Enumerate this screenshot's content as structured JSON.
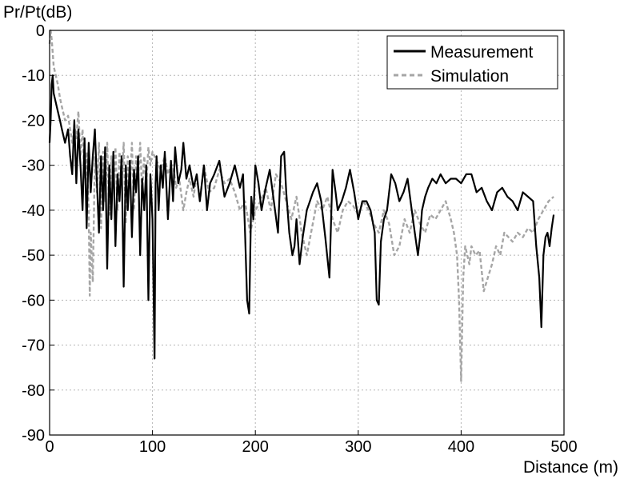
{
  "chart_data": {
    "type": "line",
    "title": "",
    "xlabel": "Distance (m)",
    "ylabel": "Pr/Pt(dB)",
    "xlim": [
      0,
      500
    ],
    "ylim": [
      -90,
      0
    ],
    "x_ticks": [
      0,
      100,
      200,
      300,
      400,
      500
    ],
    "y_ticks": [
      0,
      -10,
      -20,
      -30,
      -40,
      -50,
      -60,
      -70,
      -80,
      -90
    ],
    "x_tick_labels": [
      "0",
      "100",
      "200",
      "300",
      "400",
      "500"
    ],
    "y_tick_labels": [
      "0",
      "-10",
      "-20",
      "-30",
      "-40",
      "-50",
      "-60",
      "-70",
      "-80",
      "-90"
    ],
    "grid": true,
    "legend_position": "top-right",
    "series": [
      {
        "name": "Measurement",
        "color": "#000000",
        "style": "solid",
        "x": [
          0,
          1,
          2,
          3,
          4,
          6,
          8,
          10,
          12,
          15,
          18,
          20,
          22,
          24,
          26,
          28,
          30,
          32,
          34,
          36,
          38,
          40,
          42,
          44,
          46,
          48,
          50,
          52,
          54,
          56,
          58,
          60,
          62,
          64,
          66,
          68,
          70,
          72,
          74,
          76,
          78,
          80,
          82,
          84,
          86,
          88,
          90,
          92,
          94,
          96,
          98,
          100,
          102,
          103,
          104,
          106,
          108,
          110,
          112,
          115,
          118,
          120,
          122,
          125,
          128,
          130,
          133,
          136,
          140,
          143,
          146,
          150,
          153,
          156,
          160,
          165,
          170,
          175,
          180,
          185,
          188,
          190,
          192,
          194,
          196,
          198,
          200,
          203,
          206,
          210,
          214,
          218,
          222,
          225,
          228,
          230,
          233,
          236,
          238,
          240,
          243,
          246,
          250,
          253,
          256,
          260,
          264,
          268,
          272,
          275,
          278,
          280,
          284,
          288,
          292,
          296,
          300,
          304,
          308,
          312,
          316,
          318,
          320,
          322,
          325,
          328,
          332,
          336,
          340,
          344,
          348,
          352,
          355,
          358,
          360,
          362,
          365,
          368,
          372,
          376,
          380,
          385,
          390,
          395,
          400,
          405,
          410,
          415,
          420,
          425,
          430,
          435,
          440,
          445,
          450,
          455,
          460,
          465,
          470,
          473,
          476,
          478,
          480,
          482,
          484,
          486,
          488,
          490
        ],
        "y": [
          -25,
          -20,
          -12,
          -10,
          -14,
          -16,
          -18,
          -20,
          -22,
          -25,
          -22,
          -28,
          -32,
          -20,
          -34,
          -22,
          -30,
          -40,
          -24,
          -44,
          -25,
          -36,
          -28,
          -22,
          -34,
          -45,
          -28,
          -40,
          -26,
          -53,
          -30,
          -42,
          -27,
          -48,
          -32,
          -38,
          -28,
          -57,
          -30,
          -40,
          -29,
          -46,
          -31,
          -36,
          -28,
          -50,
          -33,
          -40,
          -30,
          -60,
          -32,
          -42,
          -73,
          -34,
          -28,
          -40,
          -30,
          -35,
          -27,
          -42,
          -29,
          -38,
          -26,
          -34,
          -31,
          -25,
          -33,
          -30,
          -35,
          -32,
          -38,
          -30,
          -40,
          -34,
          -32,
          -29,
          -37,
          -34,
          -30,
          -35,
          -32,
          -45,
          -60,
          -63,
          -37,
          -42,
          -30,
          -34,
          -40,
          -35,
          -31,
          -38,
          -45,
          -28,
          -27,
          -36,
          -45,
          -50,
          -48,
          -42,
          -52,
          -46,
          -40,
          -38,
          -36,
          -34,
          -38,
          -46,
          -55,
          -31,
          -36,
          -40,
          -38,
          -35,
          -31,
          -36,
          -42,
          -38,
          -38,
          -40,
          -45,
          -60,
          -61,
          -47,
          -42,
          -40,
          -32,
          -34,
          -38,
          -36,
          -33,
          -40,
          -45,
          -50,
          -46,
          -40,
          -37,
          -35,
          -33,
          -34,
          -32,
          -34,
          -33,
          -33,
          -34,
          -32,
          -32,
          -36,
          -35,
          -38,
          -40,
          -36,
          -35,
          -37,
          -38,
          -40,
          -36,
          -37,
          -38,
          -48,
          -55,
          -66,
          -50,
          -46,
          -45,
          -48,
          -44,
          -41
        ]
      },
      {
        "name": "Simulation",
        "color": "#a6a6a6",
        "style": "dashed",
        "x": [
          0,
          1,
          2,
          3,
          4,
          6,
          8,
          10,
          12,
          15,
          18,
          20,
          22,
          24,
          26,
          28,
          30,
          32,
          34,
          36,
          38,
          39,
          40,
          42,
          44,
          46,
          48,
          50,
          52,
          54,
          56,
          58,
          60,
          62,
          64,
          66,
          68,
          70,
          72,
          74,
          76,
          78,
          80,
          82,
          84,
          86,
          88,
          90,
          92,
          94,
          96,
          98,
          100,
          104,
          108,
          112,
          115,
          118,
          120,
          123,
          126,
          130,
          133,
          136,
          140,
          143,
          146,
          150,
          155,
          160,
          165,
          170,
          175,
          180,
          185,
          190,
          195,
          200,
          205,
          210,
          215,
          220,
          225,
          230,
          235,
          240,
          245,
          250,
          255,
          260,
          265,
          270,
          275,
          280,
          285,
          290,
          295,
          300,
          305,
          310,
          315,
          320,
          325,
          330,
          335,
          340,
          345,
          350,
          355,
          360,
          365,
          370,
          375,
          380,
          385,
          390,
          393,
          396,
          398,
          400,
          402,
          404,
          406,
          408,
          410,
          414,
          418,
          422,
          426,
          430,
          434,
          438,
          442,
          446,
          450,
          455,
          460,
          465,
          470,
          475,
          480,
          485,
          490
        ],
        "y": [
          -3,
          0,
          -2,
          -5,
          -8,
          -10,
          -12,
          -15,
          -17,
          -20,
          -19,
          -22,
          -25,
          -21,
          -24,
          -18,
          -28,
          -22,
          -33,
          -27,
          -40,
          -59,
          -45,
          -56,
          -28,
          -36,
          -25,
          -44,
          -27,
          -38,
          -25,
          -41,
          -28,
          -35,
          -26,
          -40,
          -27,
          -34,
          -25,
          -43,
          -28,
          -35,
          -25,
          -40,
          -28,
          -33,
          -25,
          -36,
          -28,
          -34,
          -26,
          -30,
          -27,
          -29,
          -31,
          -28,
          -32,
          -30,
          -30,
          -35,
          -33,
          -40,
          -36,
          -33,
          -37,
          -32,
          -38,
          -30,
          -36,
          -35,
          -31,
          -34,
          -33,
          -36,
          -40,
          -38,
          -45,
          -40,
          -38,
          -35,
          -40,
          -32,
          -34,
          -38,
          -42,
          -37,
          -45,
          -50,
          -44,
          -38,
          -40,
          -37,
          -42,
          -45,
          -40,
          -38,
          -39,
          -41,
          -38,
          -40,
          -43,
          -45,
          -40,
          -43,
          -50,
          -48,
          -42,
          -45,
          -40,
          -43,
          -45,
          -41,
          -42,
          -40,
          -38,
          -42,
          -45,
          -50,
          -60,
          -78,
          -55,
          -48,
          -50,
          -52,
          -48,
          -50,
          -49,
          -58,
          -55,
          -52,
          -48,
          -50,
          -45,
          -46,
          -47,
          -45,
          -46,
          -44,
          -45,
          -42,
          -40,
          -38,
          -37
        ]
      }
    ]
  }
}
